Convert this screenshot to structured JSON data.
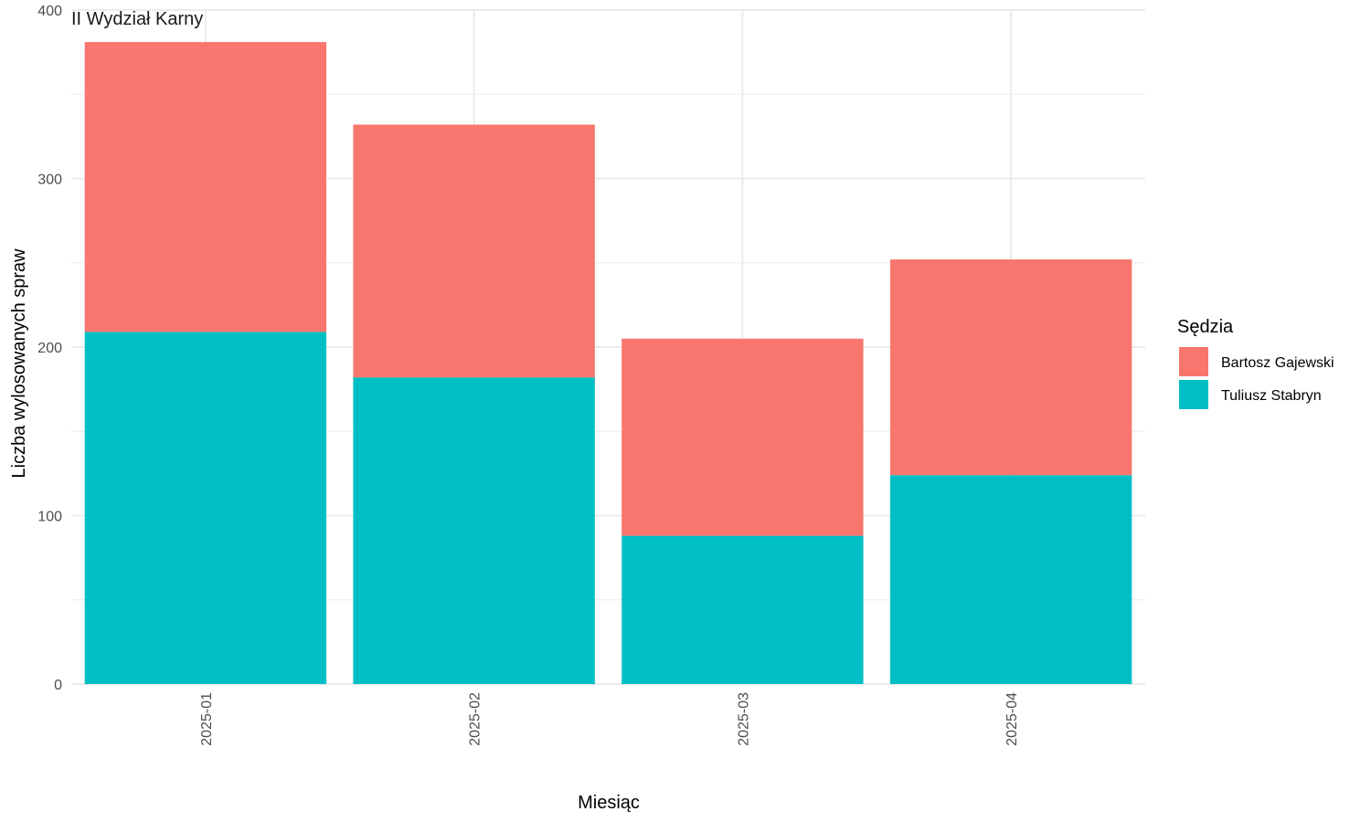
{
  "chart_data": {
    "type": "bar",
    "stacked": true,
    "title": "II Wydział Karny",
    "xlabel": "Miesiąc",
    "ylabel": "Liczba wylosowanych spraw",
    "categories": [
      "2025-01",
      "2025-02",
      "2025-03",
      "2025-04"
    ],
    "ylim": [
      0,
      400
    ],
    "yticks": [
      0,
      100,
      200,
      300,
      400
    ],
    "grid": true,
    "legend": {
      "title": "Sędzia",
      "position": "right"
    },
    "series": [
      {
        "name": "Tuliusz Stabryn",
        "color": "#00BFC4",
        "values": [
          209,
          182,
          88,
          124
        ]
      },
      {
        "name": "Bartosz Gajewski",
        "color": "#F8766D",
        "values": [
          172,
          150,
          117,
          128
        ]
      }
    ],
    "legend_order": [
      "Bartosz Gajewski",
      "Tuliusz Stabryn"
    ]
  }
}
